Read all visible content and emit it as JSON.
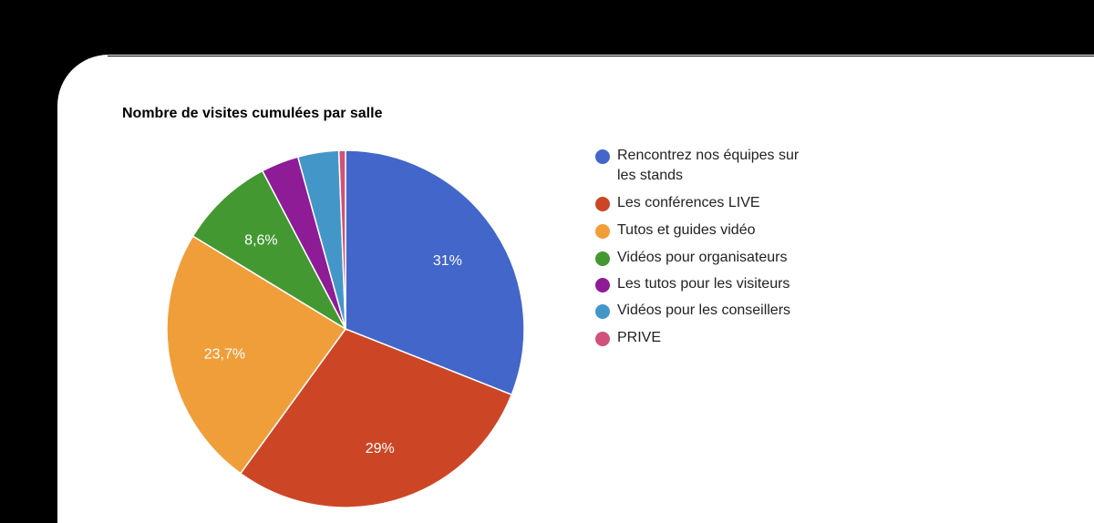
{
  "chart_data": {
    "type": "pie",
    "title": "Nombre de visites cumulées par salle",
    "legend_position": "right",
    "start_angle_deg": 0,
    "direction": "clockwise",
    "slices": [
      {
        "label": "Rencontrez nos équipes sur les stands",
        "value": 31.0,
        "display": "31%",
        "color": "#4266c9"
      },
      {
        "label": "Les conférences LIVE",
        "value": 29.0,
        "display": "29%",
        "color": "#cc4626"
      },
      {
        "label": "Tutos et guides vidéo",
        "value": 23.7,
        "display": "23,7%",
        "color": "#f09e3a"
      },
      {
        "label": "Vidéos pour organisateurs",
        "value": 8.6,
        "display": "8,6%",
        "color": "#439832"
      },
      {
        "label": "Les tutos pour les visiteurs",
        "value": 3.4,
        "display": "",
        "color": "#8e1c96"
      },
      {
        "label": "Vidéos pour les conseillers",
        "value": 3.7,
        "display": "",
        "color": "#4397c8"
      },
      {
        "label": "PRIVE",
        "value": 0.6,
        "display": "",
        "color": "#d1517b"
      }
    ]
  },
  "legend": {
    "items": [
      {
        "line1": "Rencontrez nos équipes sur",
        "line2": "les stands"
      },
      {
        "line1": "Les conférences LIVE"
      },
      {
        "line1": "Tutos et guides vidéo"
      },
      {
        "line1": "Vidéos pour organisateurs"
      },
      {
        "line1": "Les tutos pour les visiteurs"
      },
      {
        "line1": "Vidéos pour les conseillers"
      },
      {
        "line1": "PRIVE"
      }
    ]
  }
}
